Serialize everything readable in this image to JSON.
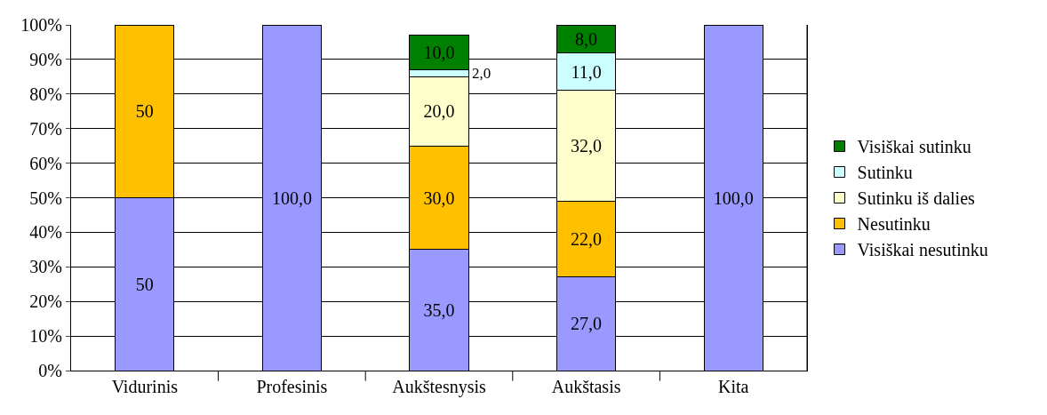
{
  "chart_data": {
    "type": "bar",
    "stacked": true,
    "categories": [
      "Vidurinis",
      "Profesinis",
      "Aukštesnysis",
      "Aukštasis",
      "Kita"
    ],
    "series": [
      {
        "name": "Visiškai nesutinku",
        "color": "#9999ff",
        "values": [
          50,
          100,
          35,
          27,
          100
        ],
        "value_labels": [
          "50",
          "100,0",
          "35,0",
          "27,0",
          "100,0"
        ]
      },
      {
        "name": "Nesutinku",
        "color": "#ffc000",
        "values": [
          50,
          null,
          30,
          22,
          null
        ],
        "value_labels": [
          "50",
          null,
          "30,0",
          "22,0",
          null
        ]
      },
      {
        "name": "Sutinku iš dalies",
        "color": "#ffffcc",
        "values": [
          null,
          null,
          20,
          32,
          null
        ],
        "value_labels": [
          null,
          null,
          "20,0",
          "32,0",
          null
        ]
      },
      {
        "name": "Sutinku",
        "color": "#ccffff",
        "values": [
          null,
          null,
          2,
          11,
          null
        ],
        "value_labels": [
          null,
          null,
          "2,0",
          "11,0",
          null
        ]
      },
      {
        "name": "Visiškai sutinku",
        "color": "#008000",
        "values": [
          null,
          null,
          10,
          8,
          null
        ],
        "value_labels": [
          null,
          null,
          "10,0",
          "8,0",
          null
        ]
      }
    ],
    "ylim": [
      0,
      100
    ],
    "yticks": [
      {
        "value": 0,
        "label": "0%"
      },
      {
        "value": 10,
        "label": "10%"
      },
      {
        "value": 20,
        "label": "20%"
      },
      {
        "value": 30,
        "label": "30%"
      },
      {
        "value": 40,
        "label": "40%"
      },
      {
        "value": 50,
        "label": "50%"
      },
      {
        "value": 60,
        "label": "60%"
      },
      {
        "value": 70,
        "label": "70%"
      },
      {
        "value": 80,
        "label": "80%"
      },
      {
        "value": 90,
        "label": "90%"
      },
      {
        "value": 100,
        "label": "100%"
      }
    ],
    "grid": "y",
    "legend": "right"
  }
}
